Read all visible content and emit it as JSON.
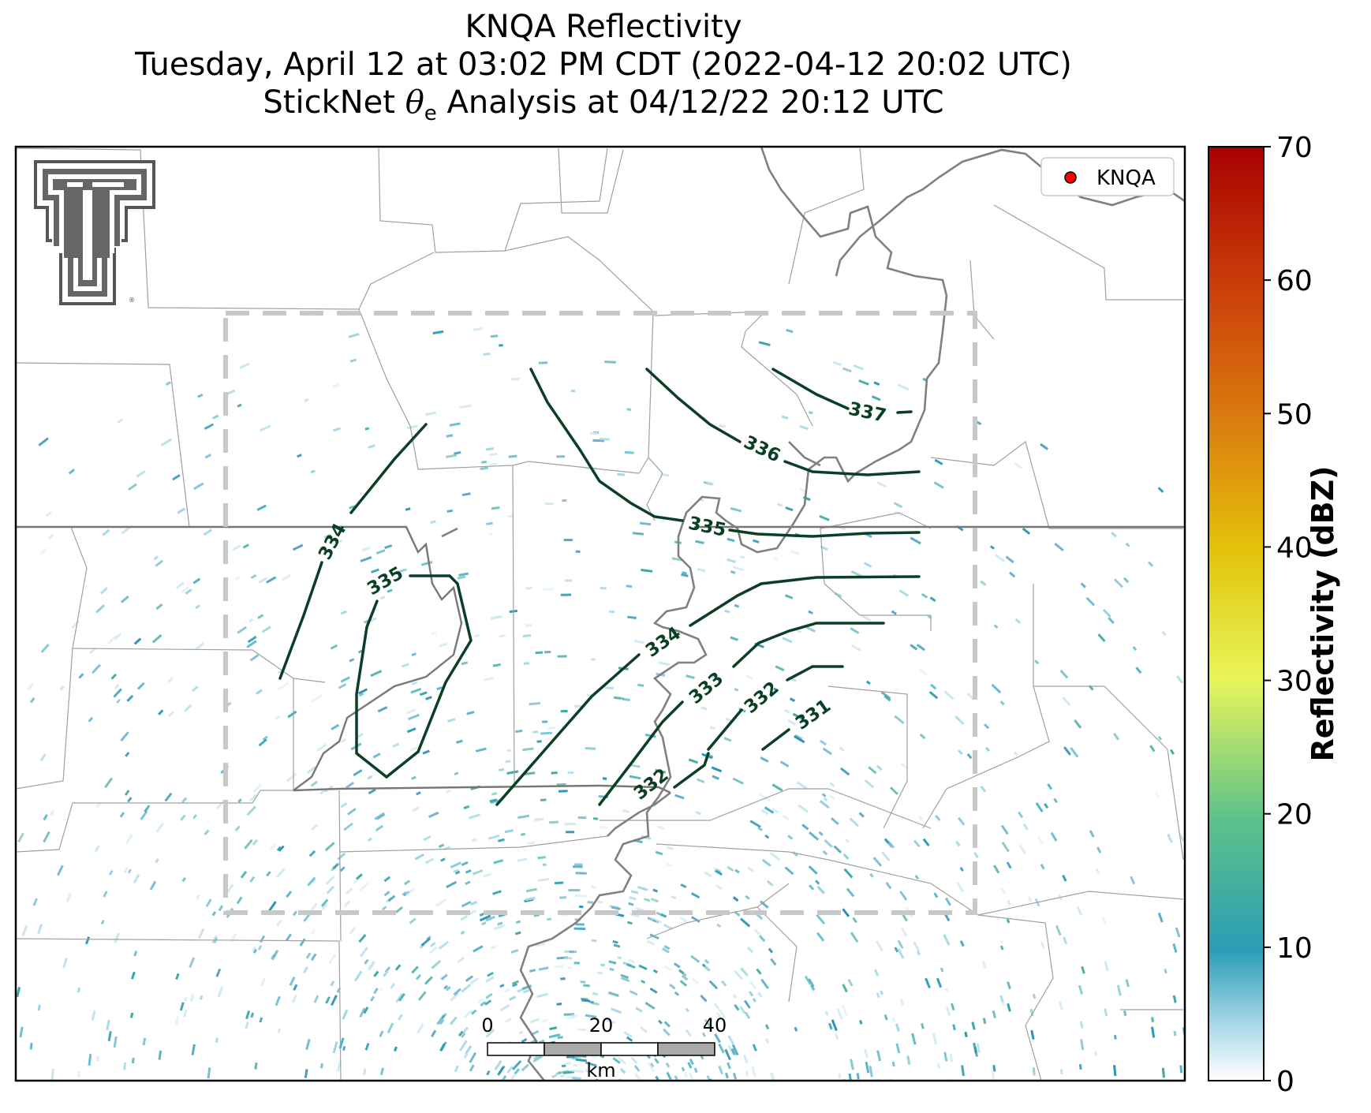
{
  "title": {
    "line1": "KNQA Reflectivity",
    "line2": "Tuesday, April 12 at 03:02 PM CDT (2022-04-12 20:02 UTC)",
    "line3_prefix": "StickNet ",
    "line3_symbol": "θ",
    "line3_subscript": "e",
    "line3_suffix": " Analysis at 04/12/22 20:12 UTC"
  },
  "legend": {
    "label": "KNQA",
    "marker_color": "#ff0000"
  },
  "colorbar": {
    "label": "Reflectivity (dBZ)",
    "min": 0,
    "max": 70,
    "ticks": [
      "0",
      "10",
      "20",
      "30",
      "40",
      "50",
      "60",
      "70"
    ],
    "colors": [
      "#ffffff",
      "#a9d8e8",
      "#2a9db4",
      "#5dc28a",
      "#e8f55a",
      "#e2c20a",
      "#db7a0e",
      "#c93a0a",
      "#a80000"
    ]
  },
  "contours": {
    "color": "#0b3f23",
    "labels": [
      "337",
      "336",
      "335",
      "334",
      "335",
      "334",
      "333",
      "332",
      "331",
      "332"
    ]
  },
  "scale_bar": {
    "ticks": [
      "0",
      "20",
      "40"
    ],
    "unit": "km"
  },
  "colors": {
    "state_border": "#777777",
    "county_border": "#9a9a9a",
    "river": "#808080",
    "domain_box": "#c8c8c8",
    "radar_echo": "#2a9db4"
  },
  "logo": {
    "description_icon": "texas-tech-double-t-logo"
  }
}
